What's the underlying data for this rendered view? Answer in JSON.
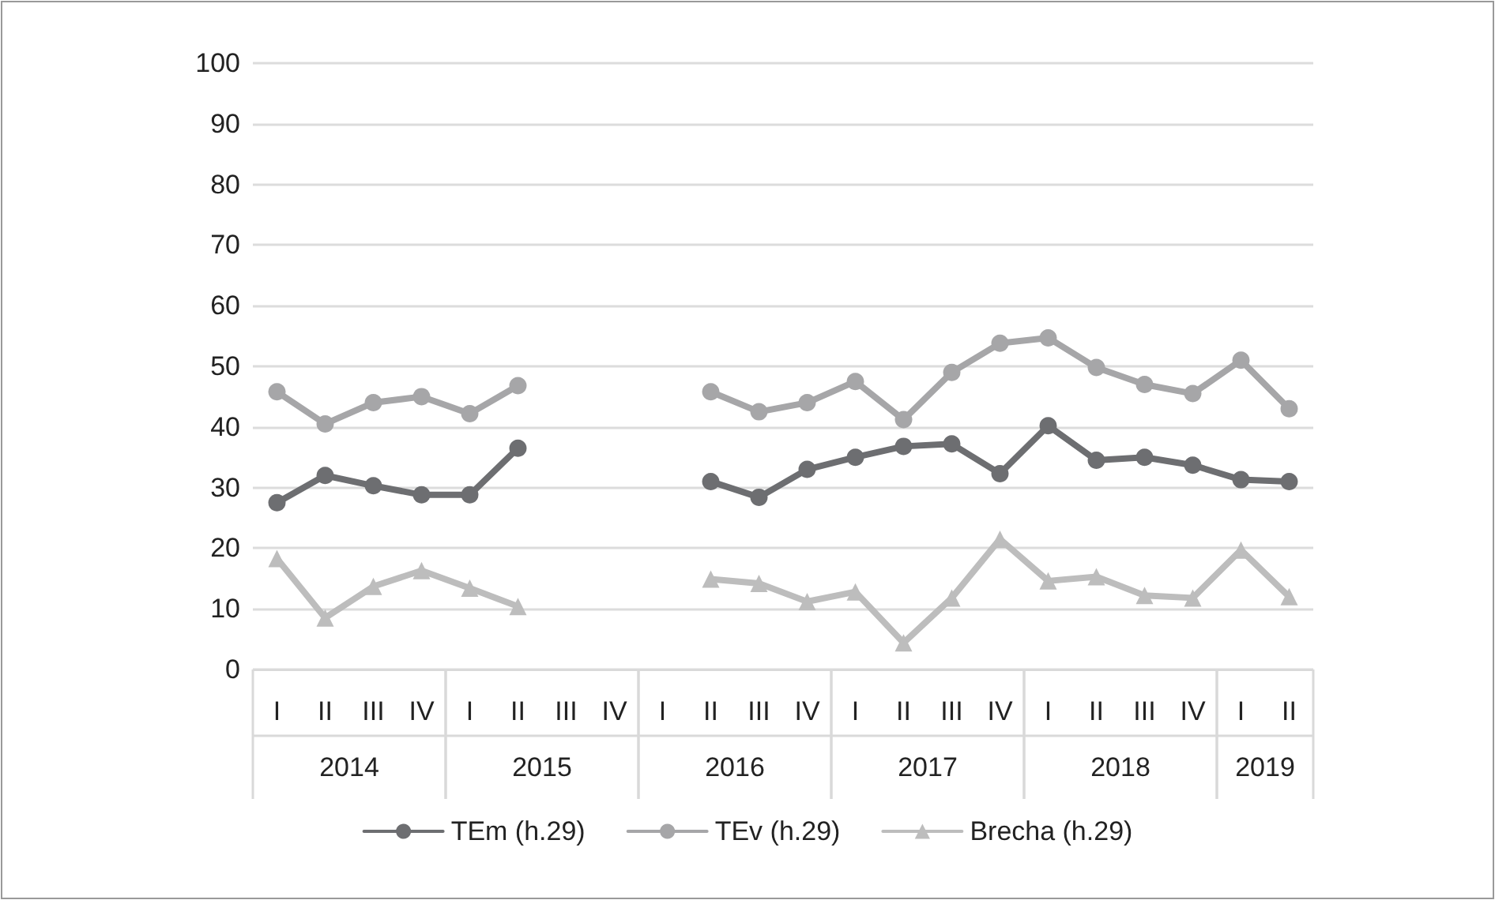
{
  "chart_data": {
    "type": "line",
    "categories": [
      "I",
      "II",
      "III",
      "IV",
      "I",
      "II",
      "III",
      "IV",
      "I",
      "II",
      "III",
      "IV",
      "I",
      "II",
      "III",
      "IV",
      "I",
      "II",
      "III",
      "IV",
      "I",
      "II"
    ],
    "annotations": [
      "2014",
      "2015",
      "2016",
      "2017",
      "2018",
      "2019"
    ],
    "series": [
      {
        "name": "TEm (h.29)",
        "color": "#6d6e71",
        "marker": "circle",
        "values": [
          27.5,
          32,
          30.3,
          28.8,
          28.8,
          36.5,
          null,
          null,
          null,
          31,
          28.4,
          33,
          35,
          36.8,
          37.2,
          32.3,
          40.2,
          34.5,
          35,
          33.7,
          31.3,
          31
        ]
      },
      {
        "name": "TEv (h.29)",
        "color": "#a6a6a8",
        "marker": "circle",
        "values": [
          45.8,
          40.5,
          44,
          45,
          42.2,
          46.8,
          null,
          null,
          null,
          45.8,
          42.5,
          44,
          47.5,
          41.2,
          49,
          53.8,
          54.7,
          49.8,
          47,
          45.5,
          51,
          43
        ]
      },
      {
        "name": "Brecha (h.29)",
        "color": "#bdbdbd",
        "marker": "triangle",
        "values": [
          18.3,
          8.5,
          13.7,
          16.3,
          13.4,
          10.4,
          null,
          null,
          null,
          14.9,
          14.2,
          11.2,
          12.8,
          4.4,
          11.8,
          21.5,
          14.6,
          15.3,
          12.2,
          11.8,
          19.7,
          12
        ]
      }
    ],
    "ylim": [
      0,
      100
    ],
    "yticks": [
      0,
      10,
      20,
      30,
      40,
      50,
      60,
      70,
      80,
      90,
      100
    ],
    "grid": "y",
    "legend": "bottom",
    "line_style": "solid"
  }
}
